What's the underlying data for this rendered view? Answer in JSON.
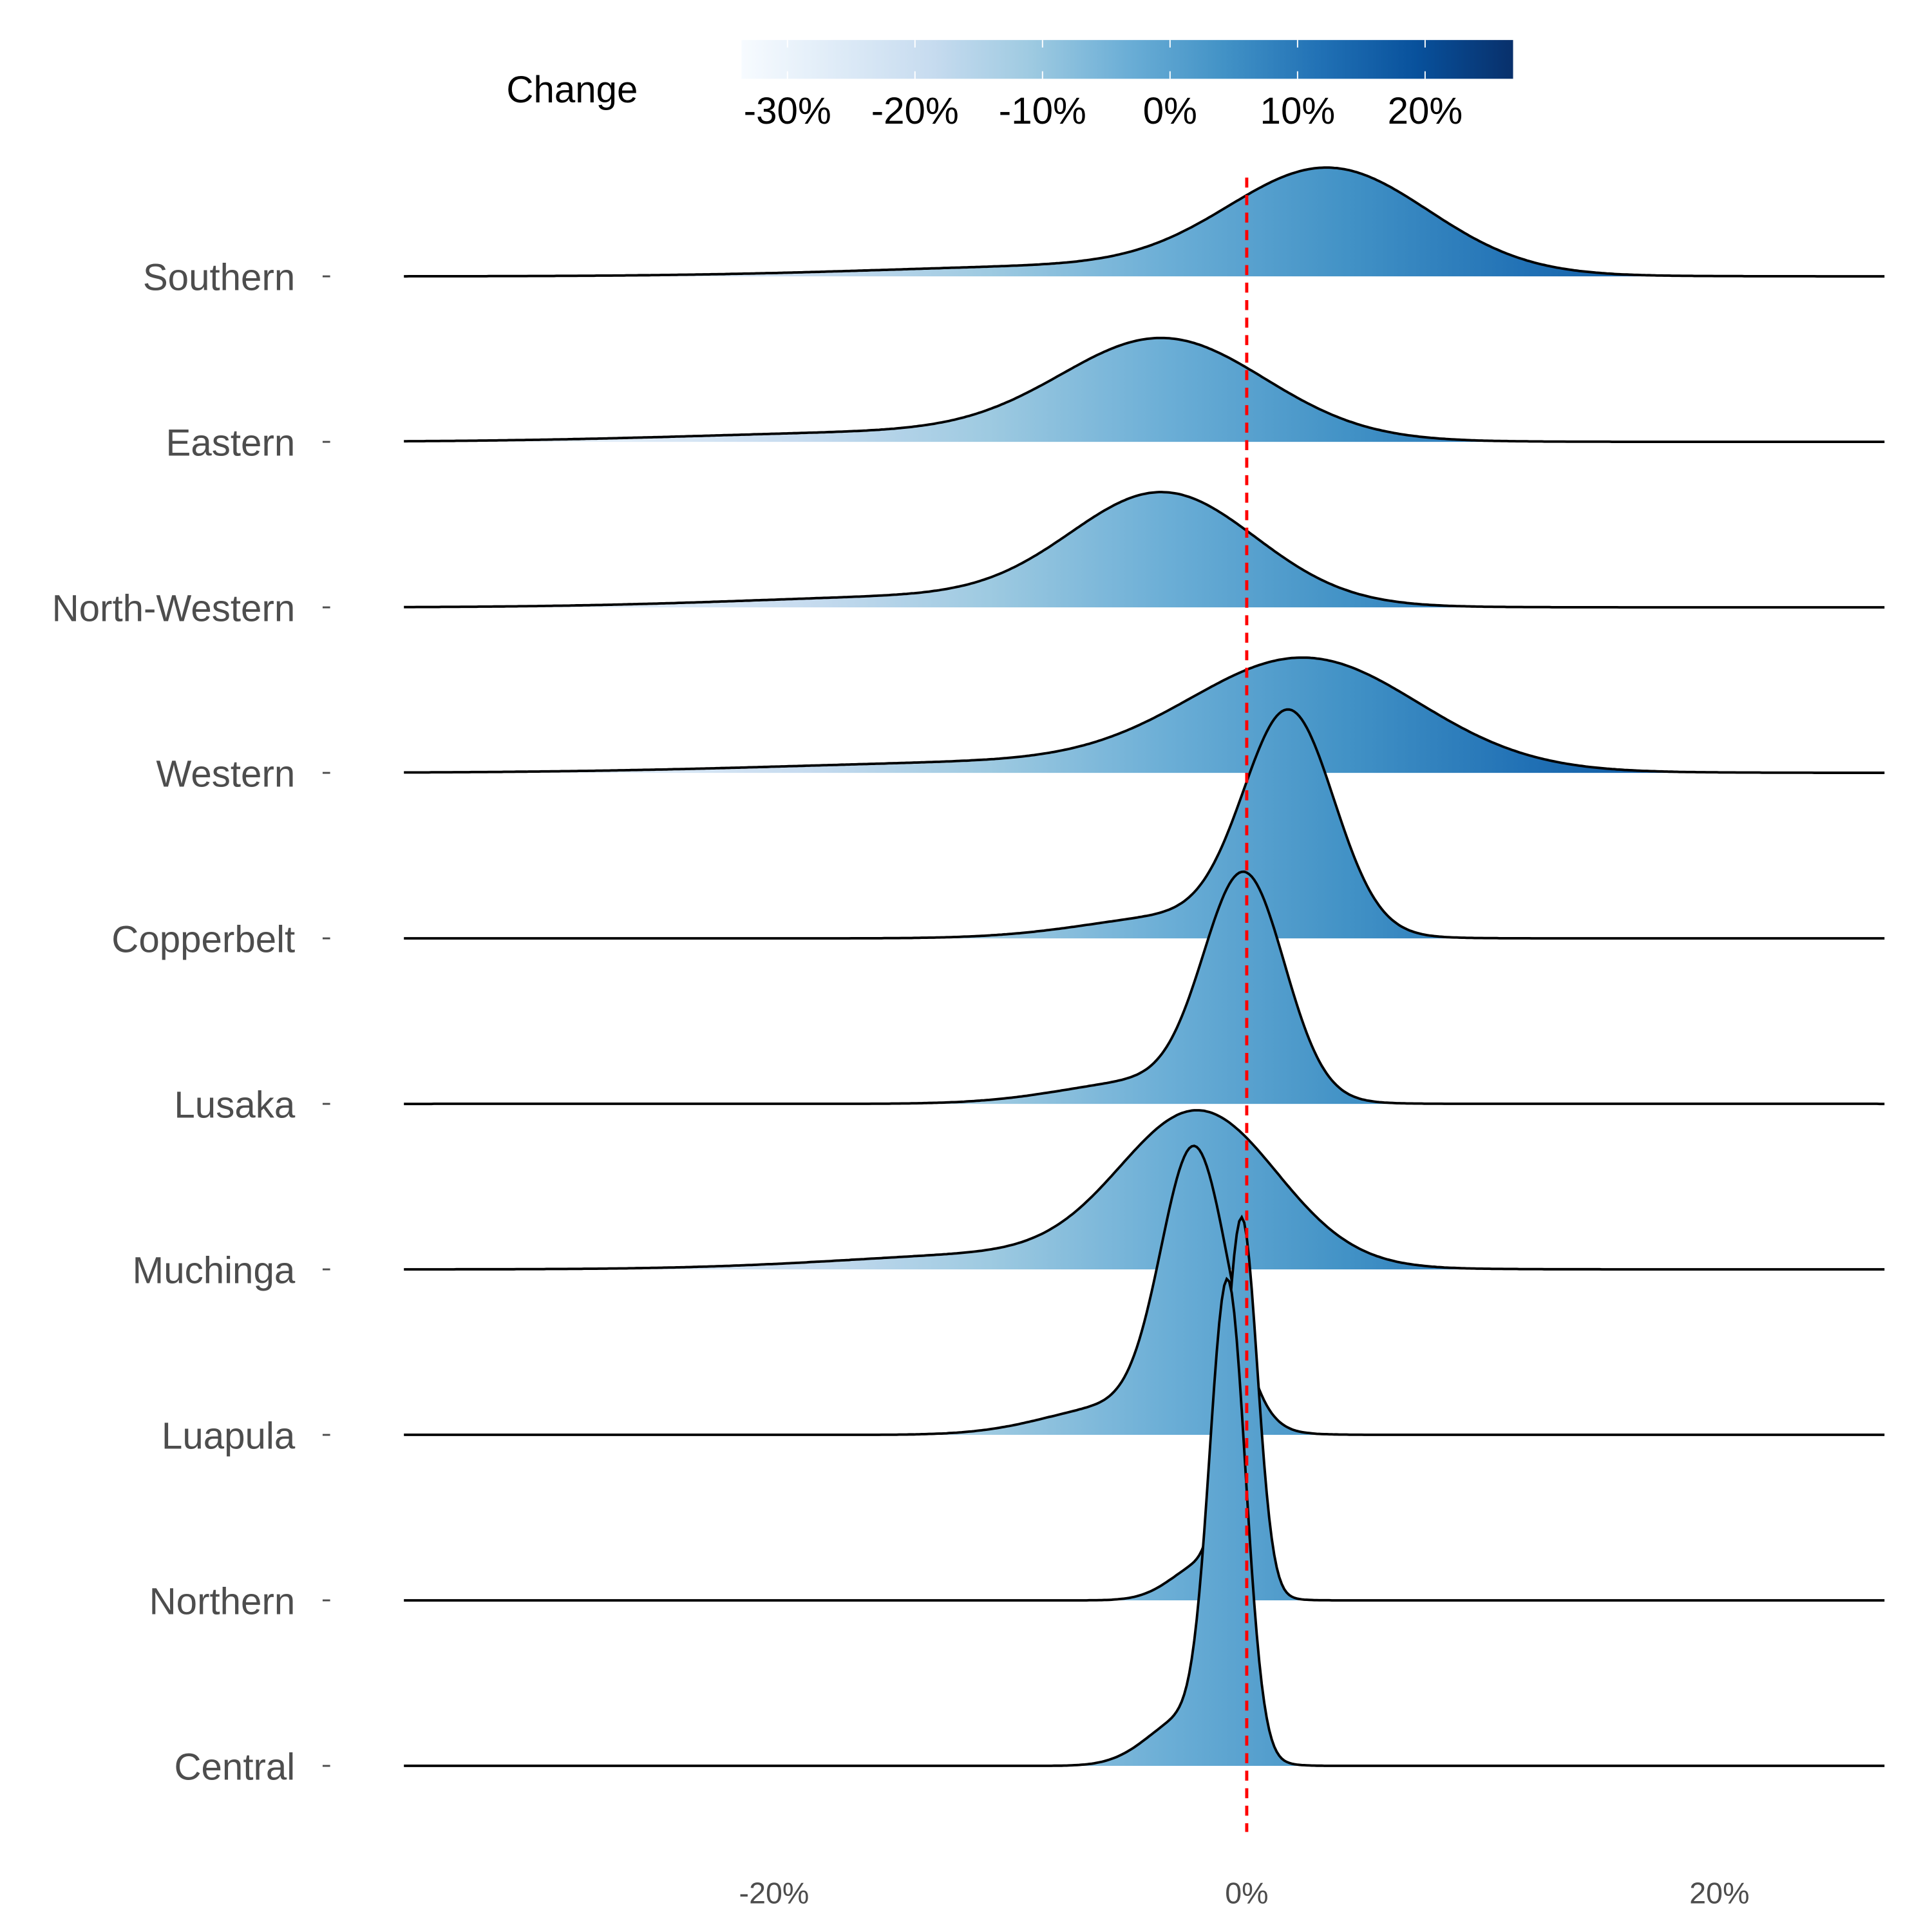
{
  "chart_data": {
    "type": "ridgeline",
    "title": "",
    "xlabel": "",
    "ylabel": "",
    "xlim": [
      -35.5,
      27
    ],
    "x_ticks": [
      {
        "value": -20,
        "label": "-20%"
      },
      {
        "value": 0,
        "label": "0%"
      },
      {
        "value": 20,
        "label": "20%"
      }
    ],
    "reference_line": {
      "value": 0,
      "color": "#ff0000",
      "style": "dashed"
    },
    "legend": {
      "title": "Change",
      "placement": "top",
      "range": [
        -33.6,
        26.9
      ],
      "ticks": [
        {
          "value": -30,
          "label": "-30%"
        },
        {
          "value": -20,
          "label": "-20%"
        },
        {
          "value": -10,
          "label": "-10%"
        },
        {
          "value": 0,
          "label": "0%"
        },
        {
          "value": 10,
          "label": "10%"
        },
        {
          "value": 20,
          "label": "20%"
        }
      ],
      "colors": [
        "#f7fbff",
        "#deebf7",
        "#c6dbef",
        "#9ecae1",
        "#6baed6",
        "#4292c6",
        "#2171b5",
        "#08519c",
        "#08306b"
      ]
    },
    "series": [
      {
        "name": "Southern",
        "mode": 3.5,
        "sd": 4.2,
        "peak_height": 0.67
      },
      {
        "name": "Eastern",
        "mode": -3.5,
        "sd": 4.3,
        "peak_height": 0.64
      },
      {
        "name": "North-Western",
        "mode": -3.5,
        "sd": 3.9,
        "peak_height": 0.71
      },
      {
        "name": "Western",
        "mode": 2.5,
        "sd": 4.8,
        "peak_height": 0.71
      },
      {
        "name": "Copperbelt",
        "mode": 1.8,
        "sd": 1.9,
        "peak_height": 1.41
      },
      {
        "name": "Lusaka",
        "mode": -0.1,
        "sd": 1.7,
        "peak_height": 1.43
      },
      {
        "name": "Muchinga",
        "mode": -2.0,
        "sd": 3.3,
        "peak_height": 0.98
      },
      {
        "name": "Luapula",
        "mode": -2.2,
        "sd": 1.4,
        "peak_height": 1.78
      },
      {
        "name": "Northern",
        "mode": -0.2,
        "sd": 0.65,
        "peak_height": 2.36
      },
      {
        "name": "Central",
        "mode": -0.8,
        "sd": 0.75,
        "peak_height": 3.0
      }
    ]
  }
}
